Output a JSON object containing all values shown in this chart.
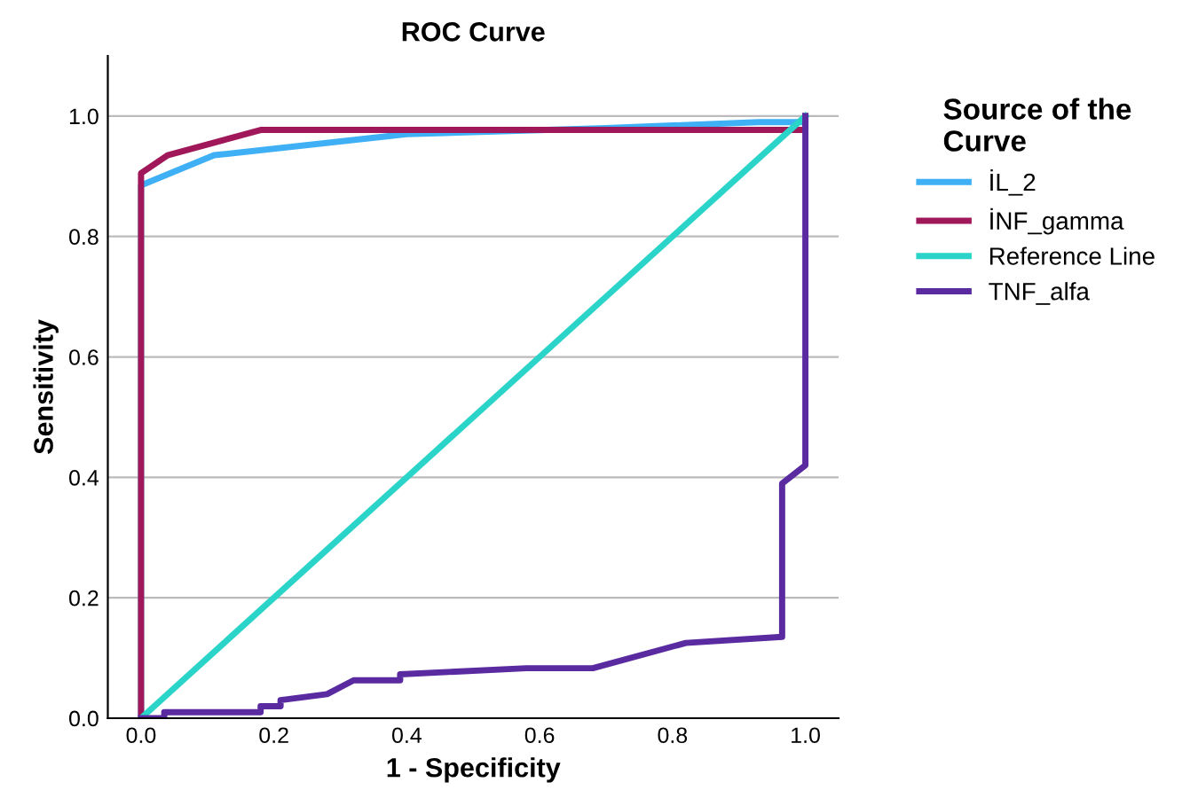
{
  "chart_data": {
    "type": "line",
    "title": "ROC Curve",
    "xlabel": "1 - Specificity",
    "ylabel": "Sensitivity",
    "legend_title": "Source of the\nCurve",
    "legend": "right",
    "grid": "y",
    "line_style": "solid",
    "xlim": [
      -0.05,
      1.05
    ],
    "ylim": [
      0,
      1.1
    ],
    "xticks": [
      {
        "value": 0,
        "label": "0.0"
      },
      {
        "value": 0.2,
        "label": "0.2"
      },
      {
        "value": 0.4,
        "label": "0.4"
      },
      {
        "value": 0.6,
        "label": "0.6"
      },
      {
        "value": 0.8,
        "label": "0.8"
      },
      {
        "value": 1,
        "label": "1.0"
      }
    ],
    "yticks": [
      {
        "value": 0,
        "label": "0.0"
      },
      {
        "value": 0.2,
        "label": "0.2"
      },
      {
        "value": 0.4,
        "label": "0.4"
      },
      {
        "value": 0.6,
        "label": "0.6"
      },
      {
        "value": 0.8,
        "label": "0.8"
      },
      {
        "value": 1,
        "label": "1.0"
      }
    ],
    "series": [
      {
        "name": "İL_2",
        "color": "#3fb0f5",
        "x": [
          0,
          0,
          0.11,
          0.4,
          0.7,
          0.93,
          1,
          1
        ],
        "values": [
          0,
          0.885,
          0.935,
          0.97,
          0.98,
          0.99,
          0.99,
          1
        ]
      },
      {
        "name": "İNF_gamma",
        "color": "#a0185a",
        "x": [
          0,
          0,
          0.04,
          0.18,
          1,
          1
        ],
        "values": [
          0,
          0.905,
          0.935,
          0.977,
          0.977,
          1
        ]
      },
      {
        "name": "Reference Line",
        "color": "#2ad4c8",
        "x": [
          0,
          1
        ],
        "values": [
          0,
          1
        ]
      },
      {
        "name": "TNF_alfa",
        "color": "#5a2aa0",
        "x": [
          0,
          0.035,
          0.035,
          0.18,
          0.18,
          0.21,
          0.21,
          0.28,
          0.32,
          0.39,
          0.39,
          0.58,
          0.68,
          0.82,
          0.965,
          0.965,
          1,
          1
        ],
        "values": [
          0,
          0,
          0.01,
          0.01,
          0.02,
          0.02,
          0.03,
          0.04,
          0.063,
          0.063,
          0.073,
          0.083,
          0.083,
          0.125,
          0.135,
          0.39,
          0.42,
          1
        ]
      }
    ]
  }
}
